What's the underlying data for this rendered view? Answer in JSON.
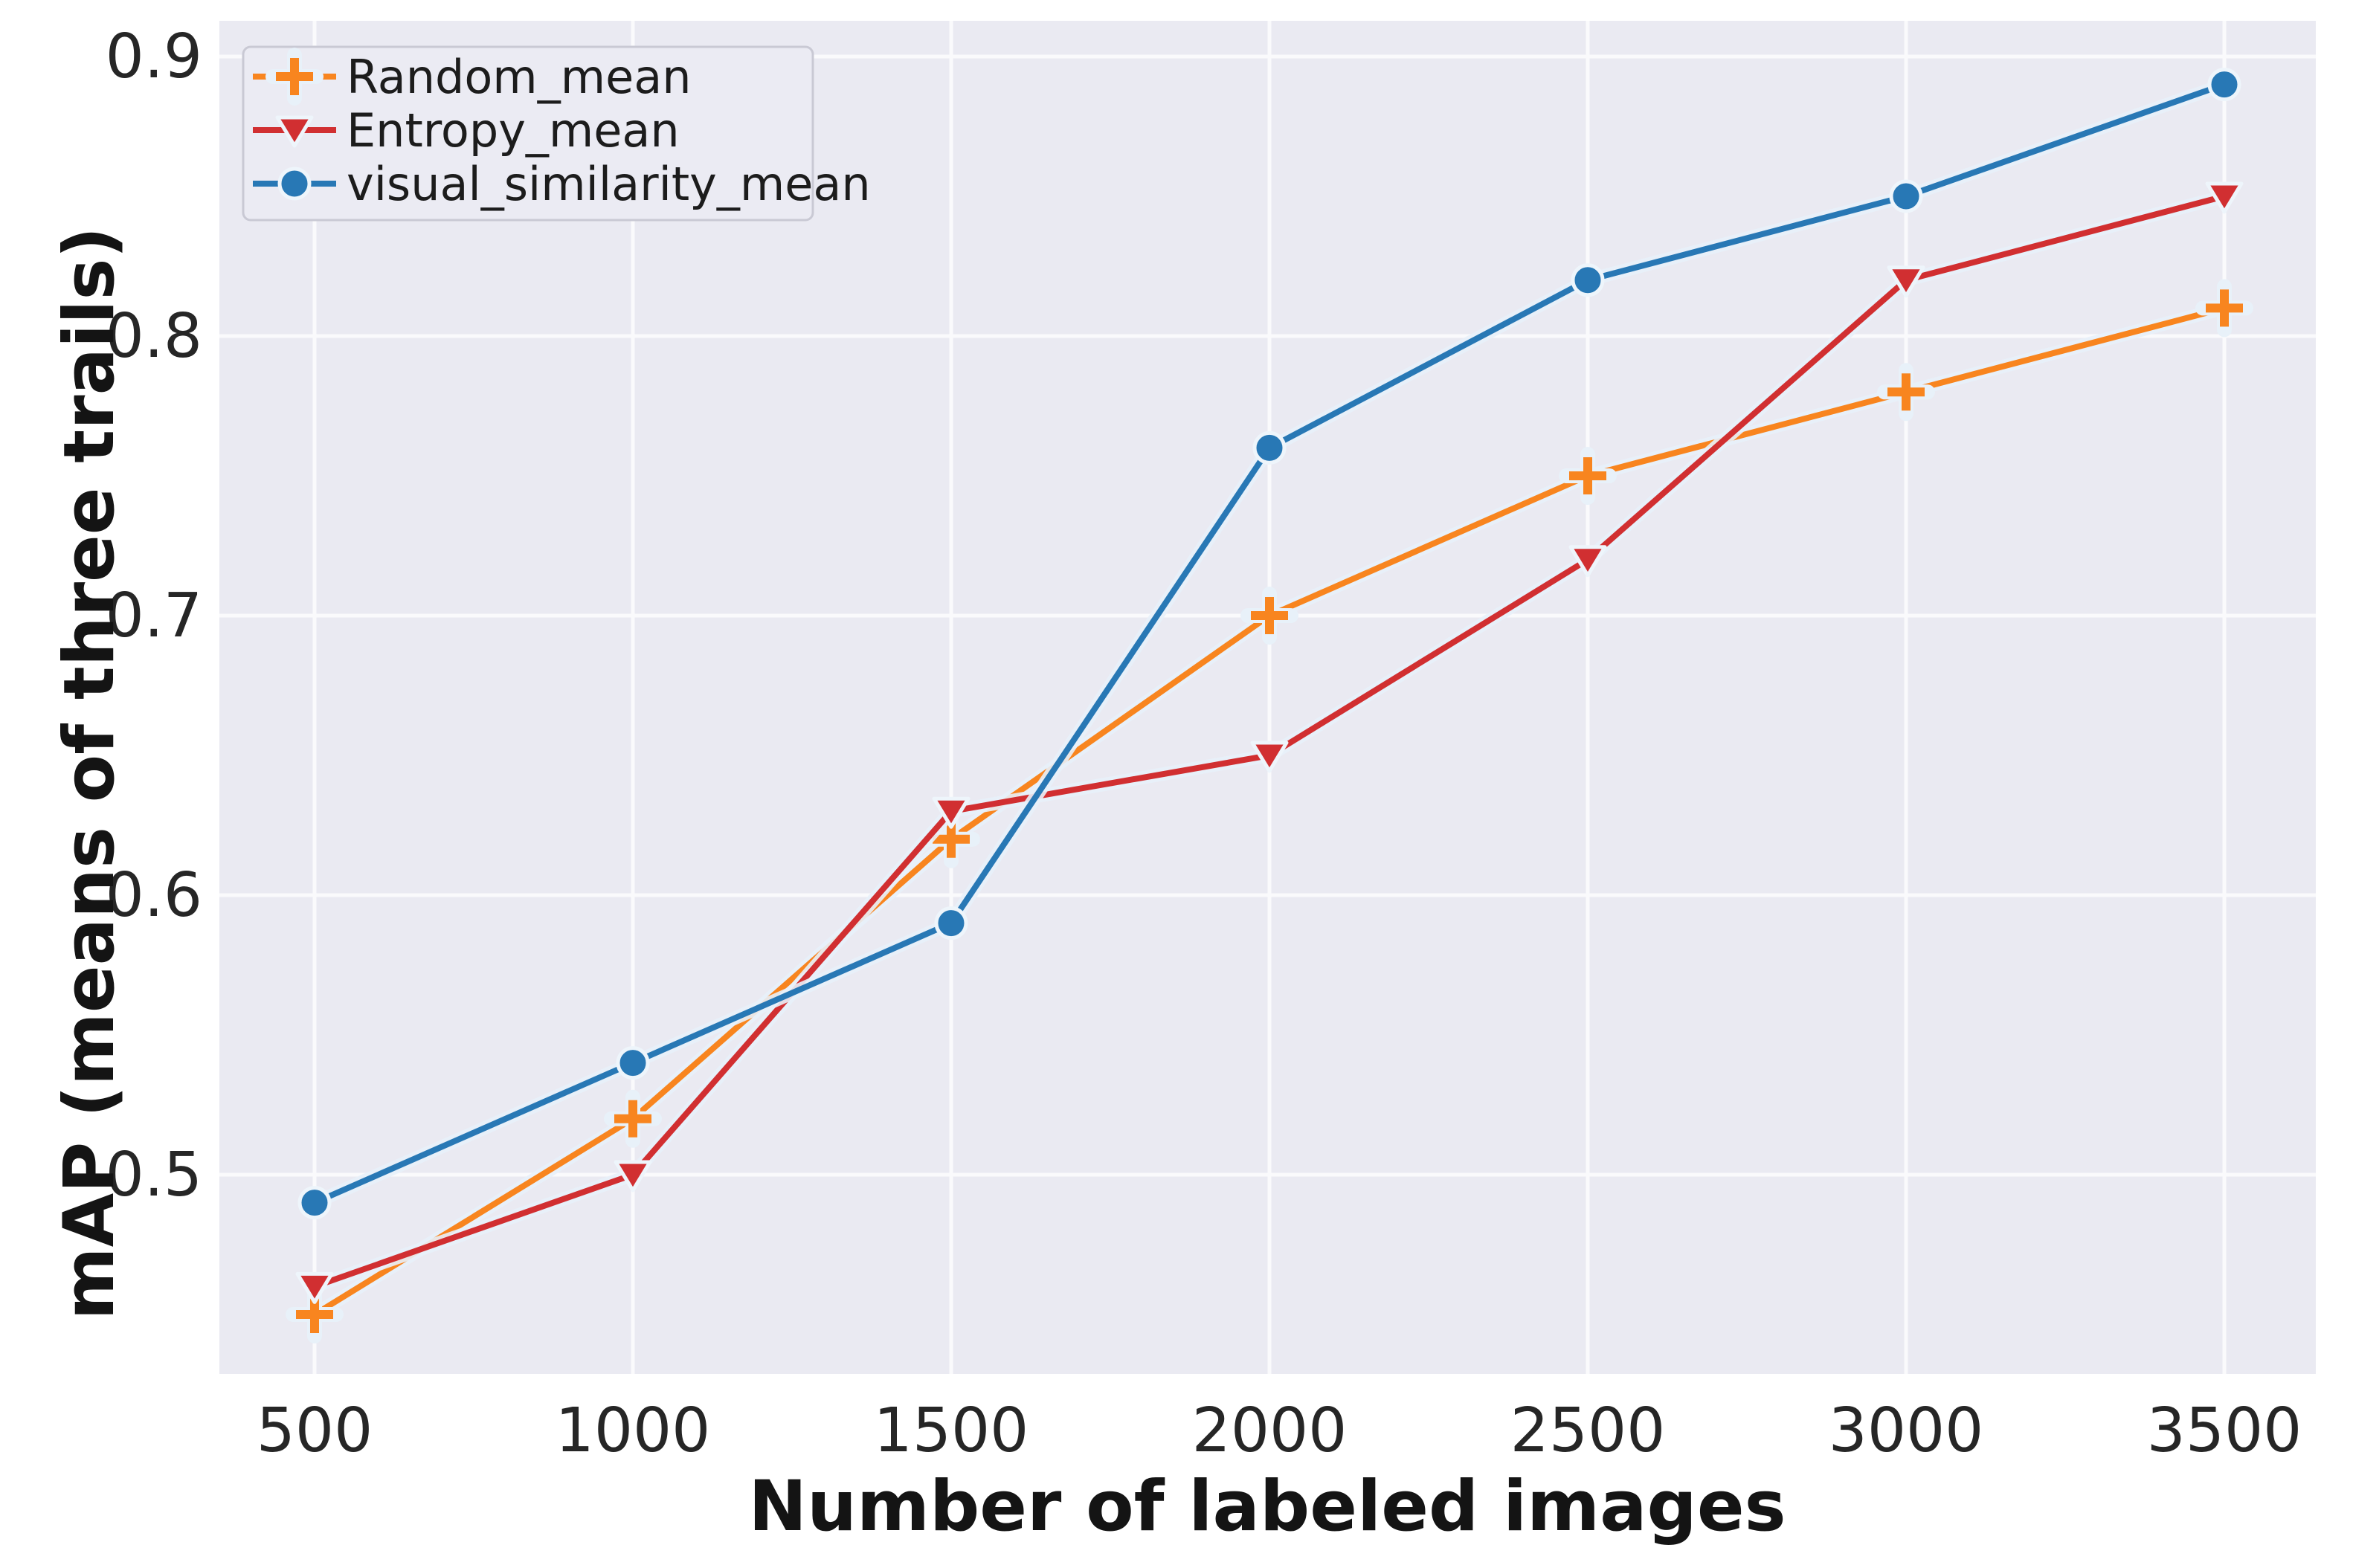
{
  "chart_data": {
    "type": "line",
    "title": "",
    "xlabel": "Number of labeled images",
    "ylabel": "mAP (means of three trails)",
    "x": [
      500,
      1000,
      1500,
      2000,
      2500,
      3000,
      3500
    ],
    "xtick_labels": [
      "500",
      "1000",
      "1500",
      "2000",
      "2500",
      "3000",
      "3500"
    ],
    "yticks": [
      0.5,
      0.6,
      0.7,
      0.8,
      0.9
    ],
    "ytick_labels": [
      "0.5",
      "0.6",
      "0.7",
      "0.8",
      "0.9"
    ],
    "xlim": [
      352,
      3644
    ],
    "ylim": [
      0.429,
      0.913
    ],
    "grid": true,
    "legend_position": "upper left",
    "series": [
      {
        "name": "Random_mean",
        "color": "#f8851f",
        "marker": "plus",
        "values": [
          0.45,
          0.52,
          0.62,
          0.7,
          0.75,
          0.78,
          0.81
        ]
      },
      {
        "name": "Entropy_mean",
        "color": "#d12f31",
        "marker": "triangle-down",
        "values": [
          0.46,
          0.5,
          0.63,
          0.65,
          0.72,
          0.82,
          0.85
        ]
      },
      {
        "name": "visual_similarity_mean",
        "color": "#2878b5",
        "marker": "circle",
        "values": [
          0.49,
          0.54,
          0.59,
          0.76,
          0.82,
          0.85,
          0.89
        ]
      }
    ]
  },
  "colors": {
    "figure_bg": "#ffffff",
    "plot_bg": "#eaeaf2",
    "grid": "#fafafc",
    "line_halo": "#e8f1f9",
    "marker_halo": "#eef5fb",
    "tick_text": "#262626",
    "title_text": "#141414",
    "legend_bg": "#ebebf3",
    "legend_border": "#c9c9d4"
  }
}
